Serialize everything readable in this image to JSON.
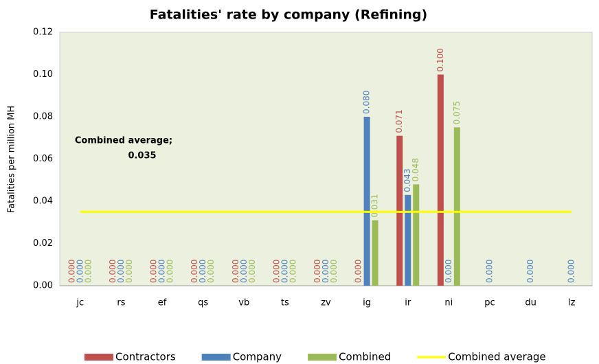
{
  "chart_data": {
    "type": "bar",
    "title": "Fatalities' rate by company (Refining)",
    "y_label": "Fatalities per million MH",
    "categories": [
      "jc",
      "rs",
      "ef",
      "qs",
      "vb",
      "ts",
      "zv",
      "ig",
      "ir",
      "ni",
      "pc",
      "du",
      "lz"
    ],
    "series": [
      {
        "name": "Contractors",
        "color": "#c0504d",
        "values": [
          0,
          0,
          0,
          0,
          0,
          0,
          0,
          0,
          0.071,
          0.1,
          null,
          null,
          null
        ],
        "value_labels": [
          "0.000",
          "0.000",
          "0.000",
          "0.000",
          "0.000",
          "0.000",
          "0.000",
          "0.000",
          "0.071",
          "0.100",
          null,
          null,
          null
        ]
      },
      {
        "name": "Company",
        "color": "#4f81bd",
        "values": [
          0,
          0,
          0,
          0,
          0,
          0,
          0,
          0.08,
          0.043,
          0,
          0,
          0,
          0
        ],
        "value_labels": [
          "0.000",
          "0.000",
          "0.000",
          "0.000",
          "0.000",
          "0.000",
          "0.000",
          "0.080",
          "0.043",
          "0.000",
          "0.000",
          "0.000",
          "0.000"
        ]
      },
      {
        "name": "Combined",
        "color": "#9bbb59",
        "values": [
          0,
          0,
          0,
          0,
          0,
          0,
          0,
          0.031,
          0.048,
          0.075,
          null,
          null,
          null
        ],
        "value_labels": [
          "0.000",
          "0.000",
          "0.000",
          "0.000",
          "0.000",
          "0.000",
          "0.000",
          "0.031",
          "0.048",
          "0.075",
          null,
          null,
          null
        ]
      },
      {
        "name": "Combined average",
        "color": "#ffff00",
        "type": "line",
        "values": [
          0.035,
          0.035,
          0.035,
          0.035,
          0.035,
          0.035,
          0.035,
          0.035,
          0.035,
          0.035,
          0.035,
          0.035,
          0.035
        ]
      }
    ],
    "annotation": {
      "text": "Combined average;",
      "value": 0.035,
      "value_label": "0.035"
    },
    "ylim": [
      0,
      0.12
    ],
    "yticks": [
      {
        "value": 0,
        "label": "0.00"
      },
      {
        "value": 0.02,
        "label": "0.02"
      },
      {
        "value": 0.04,
        "label": "0.04"
      },
      {
        "value": 0.06,
        "label": "0.06"
      },
      {
        "value": 0.08,
        "label": "0.08"
      },
      {
        "value": 0.1,
        "label": "0.10"
      },
      {
        "value": 0.12,
        "label": "0.12"
      }
    ],
    "grid": false,
    "legend": "bottom"
  }
}
